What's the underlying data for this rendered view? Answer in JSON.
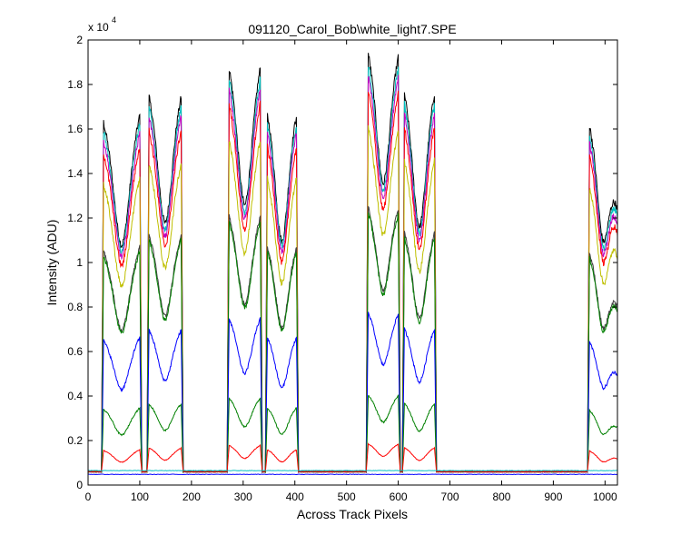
{
  "chart_data": {
    "type": "line",
    "title": "091120_Carol_Bob\\white_light7.SPE",
    "xlabel": "Across Track Pixels",
    "ylabel": "Intensity (ADU)",
    "y_exponent_label": "x 10",
    "y_exponent_power": "4",
    "xlim": [
      0,
      1024
    ],
    "ylim": [
      0,
      20000
    ],
    "y_scale_divisor": 10000,
    "grid": false,
    "legend": "none",
    "x_ticks": [
      0,
      100,
      200,
      300,
      400,
      500,
      600,
      700,
      800,
      900,
      1000
    ],
    "x_tick_labels": [
      "0",
      "100",
      "200",
      "300",
      "400",
      "500",
      "600",
      "700",
      "800",
      "900",
      "1000"
    ],
    "y_ticks": [
      0,
      2000,
      4000,
      6000,
      8000,
      10000,
      12000,
      14000,
      16000,
      18000,
      20000
    ],
    "y_tick_labels": [
      "0",
      "0.2",
      "0.4",
      "0.6",
      "0.8",
      "1",
      "1.2",
      "1.4",
      "1.6",
      "1.8",
      "2"
    ],
    "baseline": 600,
    "fibers": [
      {
        "x": [
          30,
          100
        ],
        "shape": [
          1.0,
          0.7,
          1.02
        ]
      },
      {
        "x": [
          118,
          180
        ],
        "shape": [
          1.07,
          0.76,
          1.07
        ]
      },
      {
        "x": [
          273,
          333
        ],
        "shape": [
          1.15,
          0.81,
          1.15
        ]
      },
      {
        "x": [
          347,
          403
        ],
        "shape": [
          1.02,
          0.71,
          1.02
        ]
      },
      {
        "x": [
          542,
          600
        ],
        "shape": [
          1.19,
          0.87,
          1.18
        ]
      },
      {
        "x": [
          612,
          670
        ],
        "shape": [
          1.08,
          0.75,
          1.08
        ]
      },
      {
        "x": [
          970,
          1024
        ],
        "shape": [
          0.99,
          0.71,
          0.76
        ]
      }
    ],
    "series": [
      {
        "name": "",
        "color": "#000000",
        "peak": 16300
      },
      {
        "name": "",
        "color": "#00bfbf",
        "peak": 15900
      },
      {
        "name": "",
        "color": "#bf00bf",
        "peak": 15500
      },
      {
        "name": "",
        "color": "#ff0000",
        "peak": 14900
      },
      {
        "name": "",
        "color": "#bfbf00",
        "peak": 13500
      },
      {
        "name": "",
        "color": "#404040",
        "peak": 10500
      },
      {
        "name": "",
        "color": "#007f00",
        "peak": 10300
      },
      {
        "name": "",
        "color": "#0000ff",
        "peak": 6500
      },
      {
        "name": "",
        "color": "#008000",
        "peak": 3400
      },
      {
        "name": "",
        "color": "#ff0000",
        "peak": 1550
      }
    ],
    "flat_series": [
      {
        "name": "",
        "color": "#00bfbf",
        "value": 650
      },
      {
        "name": "",
        "color": "#0000ff",
        "value": 480
      }
    ]
  }
}
